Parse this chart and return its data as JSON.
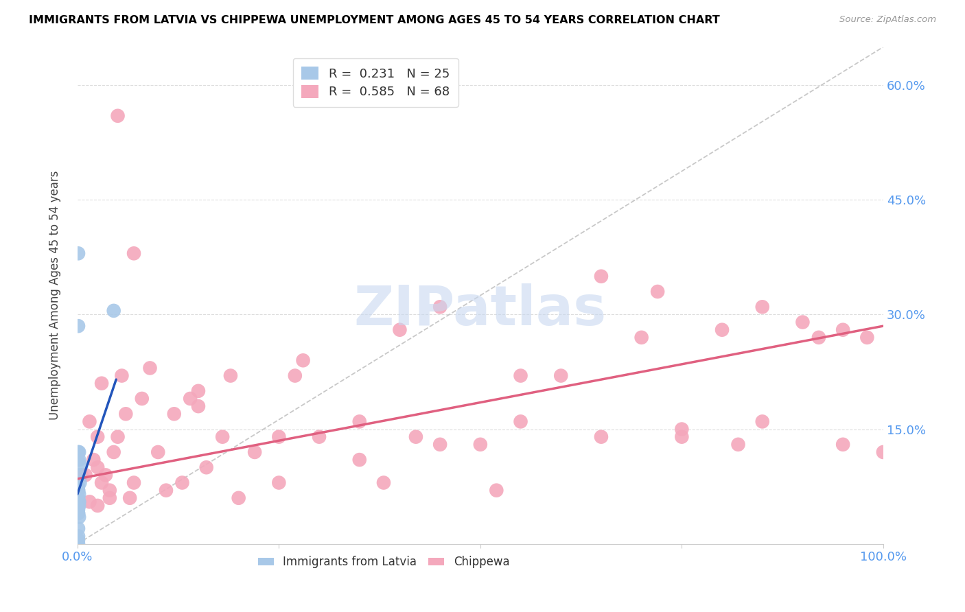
{
  "title": "IMMIGRANTS FROM LATVIA VS CHIPPEWA UNEMPLOYMENT AMONG AGES 45 TO 54 YEARS CORRELATION CHART",
  "source": "Source: ZipAtlas.com",
  "ylabel": "Unemployment Among Ages 45 to 54 years",
  "xlim": [
    0,
    1.0
  ],
  "ylim": [
    0,
    0.65
  ],
  "y_ticks_right": [
    0.0,
    0.15,
    0.3,
    0.45,
    0.6
  ],
  "y_tick_labels_right": [
    "",
    "15.0%",
    "30.0%",
    "45.0%",
    "60.0%"
  ],
  "latvia_R": 0.231,
  "latvia_N": 25,
  "chippewa_R": 0.585,
  "chippewa_N": 68,
  "latvia_color": "#a8c8e8",
  "chippewa_color": "#f4a8bc",
  "latvia_line_color": "#2255bb",
  "chippewa_line_color": "#e06080",
  "diag_color": "#bbbbbb",
  "grid_color": "#dddddd",
  "watermark_color": "#c8d8f0",
  "tick_label_color": "#5599ee",
  "latvia_x": [
    0.001,
    0.002,
    0.001,
    0.001,
    0.002,
    0.003,
    0.002,
    0.001,
    0.002,
    0.001,
    0.003,
    0.001,
    0.002,
    0.001,
    0.002,
    0.001,
    0.002,
    0.001,
    0.001,
    0.002,
    0.001,
    0.001,
    0.045,
    0.001,
    0.001
  ],
  "latvia_y": [
    0.38,
    0.055,
    0.06,
    0.075,
    0.065,
    0.08,
    0.05,
    0.04,
    0.055,
    0.045,
    0.105,
    0.04,
    0.035,
    0.02,
    0.09,
    0.07,
    0.12,
    0.285,
    0.12,
    0.11,
    0.01,
    0.0,
    0.305,
    0.07,
    0.005
  ],
  "chippewa_x": [
    0.005,
    0.01,
    0.015,
    0.02,
    0.025,
    0.03,
    0.025,
    0.04,
    0.035,
    0.05,
    0.04,
    0.045,
    0.06,
    0.07,
    0.08,
    0.065,
    0.09,
    0.1,
    0.12,
    0.11,
    0.13,
    0.15,
    0.16,
    0.14,
    0.18,
    0.2,
    0.22,
    0.19,
    0.25,
    0.28,
    0.3,
    0.27,
    0.35,
    0.4,
    0.42,
    0.45,
    0.38,
    0.5,
    0.55,
    0.52,
    0.6,
    0.65,
    0.7,
    0.72,
    0.75,
    0.8,
    0.85,
    0.82,
    0.9,
    0.92,
    0.95,
    0.98,
    1.0,
    0.15,
    0.25,
    0.35,
    0.45,
    0.55,
    0.65,
    0.75,
    0.85,
    0.95,
    0.05,
    0.03,
    0.07,
    0.015,
    0.025,
    0.055
  ],
  "chippewa_y": [
    0.09,
    0.09,
    0.055,
    0.11,
    0.05,
    0.08,
    0.14,
    0.06,
    0.09,
    0.14,
    0.07,
    0.12,
    0.17,
    0.08,
    0.19,
    0.06,
    0.23,
    0.12,
    0.17,
    0.07,
    0.08,
    0.2,
    0.1,
    0.19,
    0.14,
    0.06,
    0.12,
    0.22,
    0.08,
    0.24,
    0.14,
    0.22,
    0.16,
    0.28,
    0.14,
    0.31,
    0.08,
    0.13,
    0.16,
    0.07,
    0.22,
    0.14,
    0.27,
    0.33,
    0.15,
    0.28,
    0.16,
    0.13,
    0.29,
    0.27,
    0.13,
    0.27,
    0.12,
    0.18,
    0.14,
    0.11,
    0.13,
    0.22,
    0.35,
    0.14,
    0.31,
    0.28,
    0.56,
    0.21,
    0.38,
    0.16,
    0.1,
    0.22
  ],
  "chippewa_line_x0": 0.0,
  "chippewa_line_y0": 0.085,
  "chippewa_line_x1": 1.0,
  "chippewa_line_y1": 0.285,
  "latvia_line_x0": 0.0,
  "latvia_line_y0": 0.065,
  "latvia_line_x1": 0.048,
  "latvia_line_y1": 0.215
}
